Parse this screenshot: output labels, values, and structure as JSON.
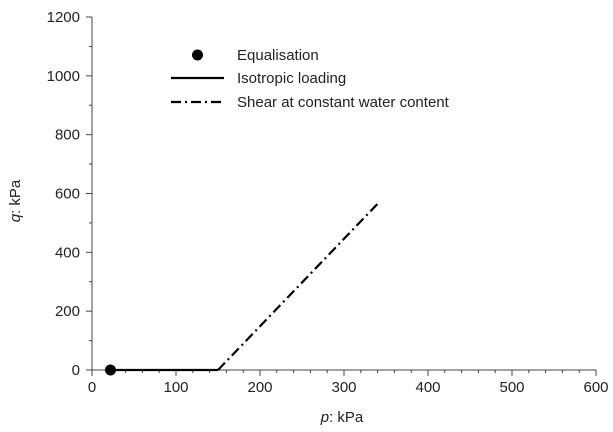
{
  "chart_data": {
    "type": "line",
    "xlabel_var": "p",
    "xlabel_unit": ": kPa",
    "ylabel_var": "q",
    "ylabel_unit": ": kPa",
    "xlim": [
      0,
      600
    ],
    "ylim": [
      0,
      1200
    ],
    "x_ticks": [
      0,
      100,
      200,
      300,
      400,
      500,
      600
    ],
    "y_ticks": [
      0,
      200,
      400,
      600,
      800,
      1000,
      1200
    ],
    "x_tick_labels": [
      "0",
      "100",
      "200",
      "300",
      "400",
      "500",
      "600"
    ],
    "y_tick_labels": [
      "0",
      "200",
      "400",
      "600",
      "800",
      "1000",
      "1200"
    ],
    "grid": false,
    "legend_position": "upper-left",
    "series": [
      {
        "name": "Equalisation",
        "style": "marker",
        "color": "#000000",
        "x": [
          22
        ],
        "y": [
          0
        ]
      },
      {
        "name": "Isotropic loading",
        "style": "solid",
        "color": "#000000",
        "x": [
          22,
          150
        ],
        "y": [
          0,
          0
        ]
      },
      {
        "name": "Shear at constant water content",
        "style": "dashdot",
        "color": "#000000",
        "x": [
          150,
          340
        ],
        "y": [
          0,
          565
        ]
      }
    ]
  }
}
